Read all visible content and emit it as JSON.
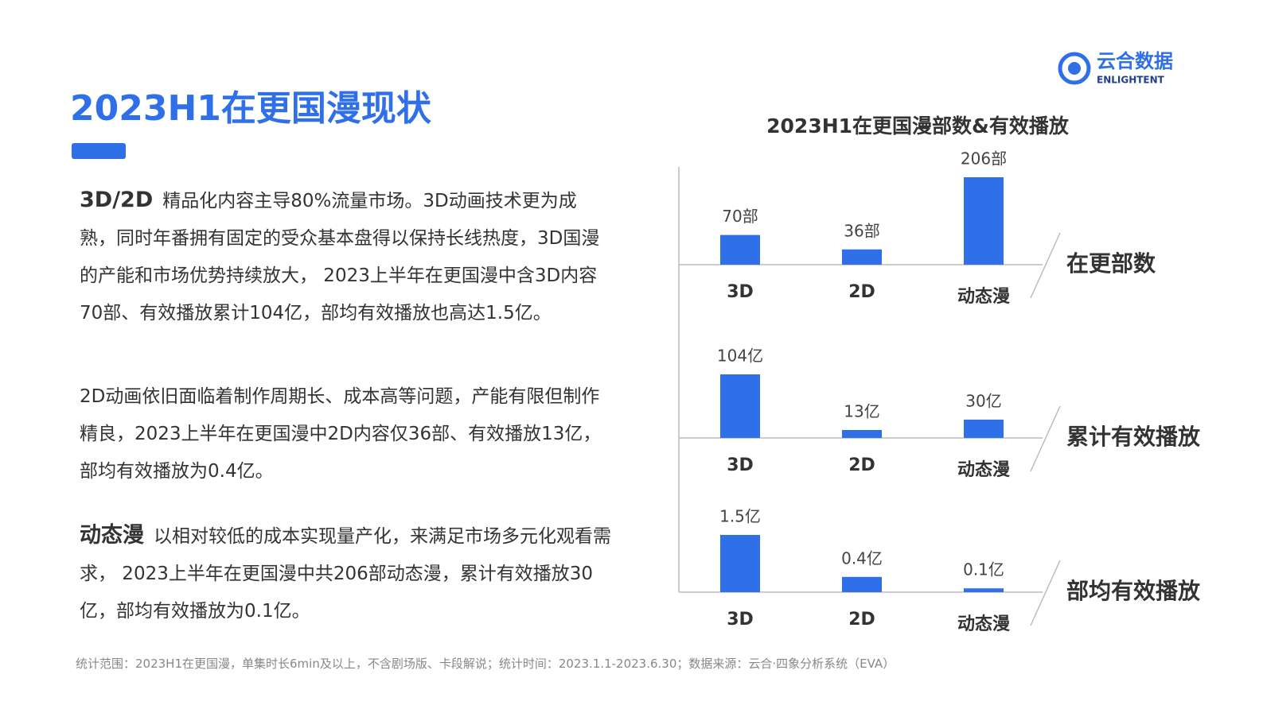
{
  "header": {
    "title": "2023H1在更国漫现状"
  },
  "logo": {
    "name": "云合数据",
    "sub": "ENLIGHTENT"
  },
  "paragraphs": [
    {
      "lead": "3D/2D",
      "text": "精品化内容主导80%流量市场。3D动画技术更为成熟，同时年番拥有固定的受众基本盘得以保持长线热度，3D国漫的产能和市场优势持续放大， 2023上半年在更国漫中含3D内容70部、有效播放累计104亿，部均有效播放也高达1.5亿。"
    },
    {
      "text": "2D动画依旧面临着制作周期长、成本高等问题，产能有限但制作精良，2023上半年在更国漫中2D内容仅36部、有效播放13亿，部均有效播放为0.4亿。"
    },
    {
      "lead": "动态漫",
      "text": "以相对较低的成本实现量产化，来满足市场多元化观看需求， 2023上半年在更国漫中共206部动态漫，累计有效播放30亿，部均有效播放为0.1亿。"
    }
  ],
  "footnote": "统计范围：2023H1在更国漫，单集时长6min及以上，不含剧场版、卡段解说；统计时间：2023.1.1-2023.6.30；数据来源：云合·四象分析系统（EVA）",
  "chart_group_title": "2023H1在更国漫部数&有效播放",
  "chart_data": [
    {
      "type": "bar",
      "title": "在更部数",
      "categories": [
        "3D",
        "2D",
        "动态漫"
      ],
      "values": [
        70,
        36,
        206
      ],
      "value_labels": [
        "70部",
        "36部",
        "206部"
      ],
      "color": "#2f6fe8"
    },
    {
      "type": "bar",
      "title": "累计有效播放",
      "categories": [
        "3D",
        "2D",
        "动态漫"
      ],
      "values": [
        104,
        13,
        30
      ],
      "value_labels": [
        "104亿",
        "13亿",
        "30亿"
      ],
      "color": "#2f6fe8"
    },
    {
      "type": "bar",
      "title": "部均有效播放",
      "categories": [
        "3D",
        "2D",
        "动态漫"
      ],
      "values": [
        1.5,
        0.4,
        0.1
      ],
      "value_labels": [
        "1.5亿",
        "0.4亿",
        "0.1亿"
      ],
      "color": "#2f6fe8"
    }
  ]
}
